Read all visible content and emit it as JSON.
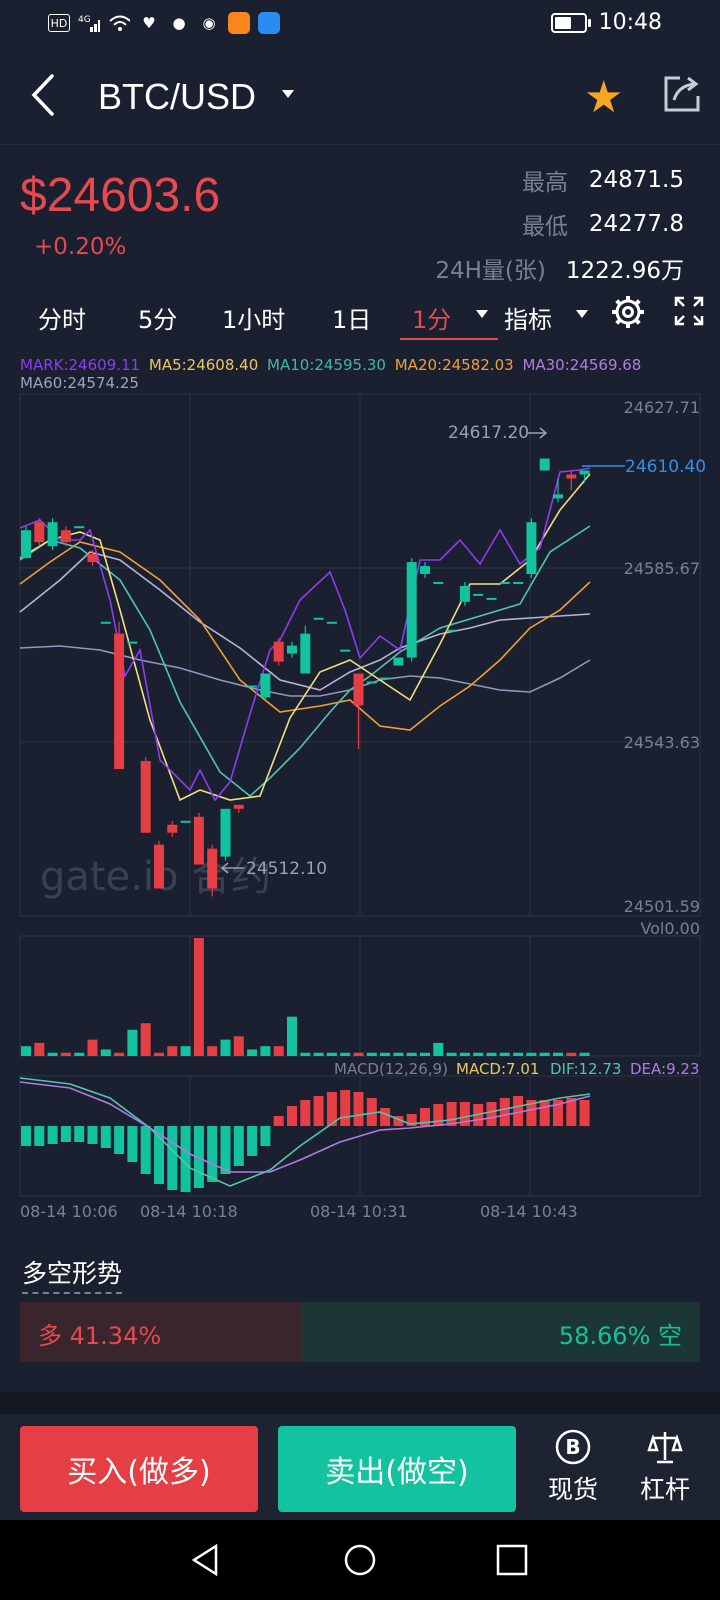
{
  "status_bar": {
    "network": "4G",
    "time": "10:48"
  },
  "header": {
    "title": "BTC/USD"
  },
  "price": {
    "current": "$24603.6",
    "change": "+0.20%",
    "high_label": "最高",
    "high_value": "24871.5",
    "low_label": "最低",
    "low_value": "24277.8",
    "vol_label": "24H量(张)",
    "vol_value": "1222.96万"
  },
  "tabs": {
    "t1": "分时",
    "t2": "5分",
    "t3": "1小时",
    "t4": "1日",
    "t5": "1分",
    "t6": "指标"
  },
  "ma_legend": {
    "mark": "MARK:24609.11",
    "ma5": "MA5:24608.40",
    "ma10": "MA10:24595.30",
    "ma20": "MA20:24582.03",
    "ma30": "MA30:24569.68",
    "ma60": "MA60:24574.25"
  },
  "chart": {
    "y_labels": [
      "24627.71",
      "24585.67",
      "24543.63",
      "24501.59"
    ],
    "high_marker": "24617.20",
    "low_marker": "24512.10",
    "last_price": "24610.40",
    "watermark": "gate.io 合约",
    "vol_label": "Vol0.00",
    "macd_label": "MACD(12,26,9)",
    "macd_value": "MACD:7.01",
    "dif_value": "DIF:12.73",
    "dea_value": "DEA:9.23",
    "time_labels": [
      "08-14 10:06",
      "08-14 10:18",
      "08-14 10:31",
      "08-14 10:43"
    ]
  },
  "chart_data": {
    "type": "candlestick",
    "y_range": [
      24501.59,
      24627.71
    ],
    "candles": [
      {
        "o": 24589,
        "c": 24596,
        "h": 24597,
        "l": 24589
      },
      {
        "o": 24598,
        "c": 24593,
        "h": 24599,
        "l": 24592
      },
      {
        "o": 24592,
        "c": 24598,
        "h": 24599,
        "l": 24591
      },
      {
        "o": 24596,
        "c": 24593,
        "h": 24597,
        "l": 24592
      },
      {
        "o": 24597,
        "c": 24597,
        "h": 24597,
        "l": 24597
      },
      {
        "o": 24590,
        "c": 24588,
        "h": 24591,
        "l": 24587
      },
      {
        "o": 24573,
        "c": 24573,
        "h": 24573,
        "l": 24573
      },
      {
        "o": 24570,
        "c": 24536,
        "h": 24573,
        "l": 24536
      },
      {
        "o": 24568,
        "c": 24568,
        "h": 24568,
        "l": 24568
      },
      {
        "o": 24538,
        "c": 24520,
        "h": 24539,
        "l": 24520
      },
      {
        "o": 24517,
        "c": 24506,
        "h": 24518,
        "l": 24506
      },
      {
        "o": 24522,
        "c": 24520,
        "h": 24523,
        "l": 24519
      },
      {
        "o": 24523,
        "c": 24523,
        "h": 24523,
        "l": 24523
      },
      {
        "o": 24524,
        "c": 24512,
        "h": 24525,
        "l": 24512
      },
      {
        "o": 24516,
        "c": 24506,
        "h": 24517,
        "l": 24504
      },
      {
        "o": 24514,
        "c": 24526,
        "h": 24526,
        "l": 24513
      },
      {
        "o": 24527,
        "c": 24526,
        "h": 24527,
        "l": 24525
      },
      {
        "o": 24557,
        "c": 24557,
        "h": 24557,
        "l": 24557
      },
      {
        "o": 24554,
        "c": 24560,
        "h": 24560,
        "l": 24553
      },
      {
        "o": 24568,
        "c": 24563,
        "h": 24569,
        "l": 24562
      },
      {
        "o": 24565,
        "c": 24567,
        "h": 24568,
        "l": 24564
      },
      {
        "o": 24560,
        "c": 24570,
        "h": 24572,
        "l": 24560
      },
      {
        "o": 24574,
        "c": 24574,
        "h": 24574,
        "l": 24574
      },
      {
        "o": 24573,
        "c": 24573,
        "h": 24573,
        "l": 24573
      },
      {
        "o": 24566,
        "c": 24566,
        "h": 24566,
        "l": 24566
      },
      {
        "o": 24560,
        "c": 24552,
        "h": 24560,
        "l": 24541
      },
      {
        "o": 24558,
        "c": 24558,
        "h": 24558,
        "l": 24558
      },
      {
        "o": 24559,
        "c": 24559,
        "h": 24559,
        "l": 24559
      },
      {
        "o": 24562,
        "c": 24564,
        "h": 24564,
        "l": 24562
      },
      {
        "o": 24564,
        "c": 24588,
        "h": 24589,
        "l": 24563
      },
      {
        "o": 24585,
        "c": 24587,
        "h": 24588,
        "l": 24584
      },
      {
        "o": 24583,
        "c": 24583,
        "h": 24583,
        "l": 24583
      },
      {
        "o": 24571,
        "c": 24571,
        "h": 24571,
        "l": 24571
      },
      {
        "o": 24578,
        "c": 24582,
        "h": 24583,
        "l": 24577
      },
      {
        "o": 24580,
        "c": 24580,
        "h": 24580,
        "l": 24580
      },
      {
        "o": 24579,
        "c": 24579,
        "h": 24579,
        "l": 24579
      },
      {
        "o": 24583,
        "c": 24583,
        "h": 24583,
        "l": 24583
      },
      {
        "o": 24583,
        "c": 24583,
        "h": 24583,
        "l": 24583
      },
      {
        "o": 24585,
        "c": 24598,
        "h": 24599,
        "l": 24584
      },
      {
        "o": 24611,
        "c": 24614,
        "h": 24614,
        "l": 24611
      },
      {
        "o": 24604,
        "c": 24605,
        "h": 24609,
        "l": 24603
      },
      {
        "o": 24610,
        "c": 24609,
        "h": 24611,
        "l": 24606
      },
      {
        "o": 24610,
        "c": 24611,
        "h": 24611,
        "l": 24608
      }
    ],
    "volume": [
      3,
      4,
      1,
      1,
      1,
      5,
      2,
      1,
      8,
      10,
      1,
      3,
      3,
      36,
      3,
      5,
      6,
      2,
      3,
      3,
      12,
      1,
      1,
      1,
      1,
      1,
      1,
      1,
      1,
      1,
      1,
      4,
      1,
      1,
      1,
      1,
      1,
      1,
      1,
      1,
      1,
      1,
      1
    ]
  },
  "sentiment": {
    "title": "多空形势",
    "long": "多 41.34%",
    "long_pct": 41.34,
    "short": "58.66% 空"
  },
  "actions": {
    "buy": "买入(做多)",
    "sell": "卖出(做空)",
    "spot": "现货",
    "leverage": "杠杆"
  }
}
